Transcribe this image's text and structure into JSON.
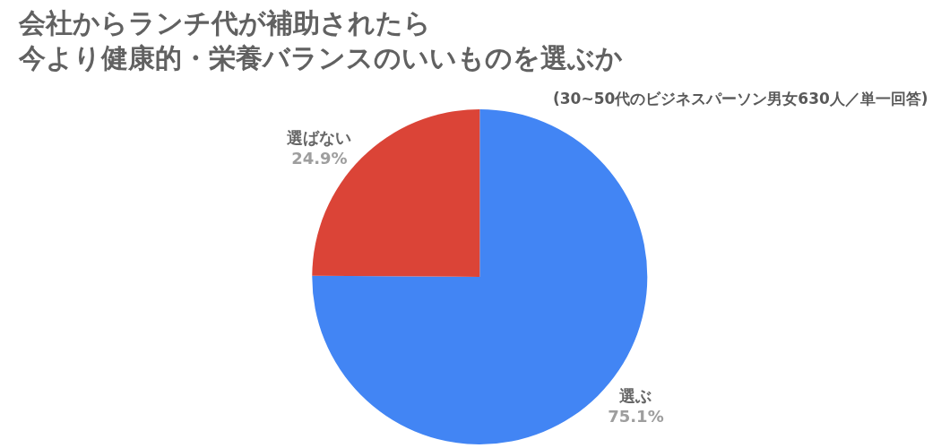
{
  "chart_data": {
    "type": "pie",
    "title": "会社からランチ代が補助されたら今より健康的・栄養バランスのいいものを選ぶか",
    "subtitle": "(30~50代のビジネスパーソン男女630人／単一回答)",
    "categories": [
      "選ぶ",
      "選ばない"
    ],
    "values": [
      75.1,
      24.9
    ],
    "value_labels": [
      "75.1%",
      "24.9%"
    ],
    "colors": [
      "#4285f4",
      "#db4437"
    ],
    "legend": false
  }
}
